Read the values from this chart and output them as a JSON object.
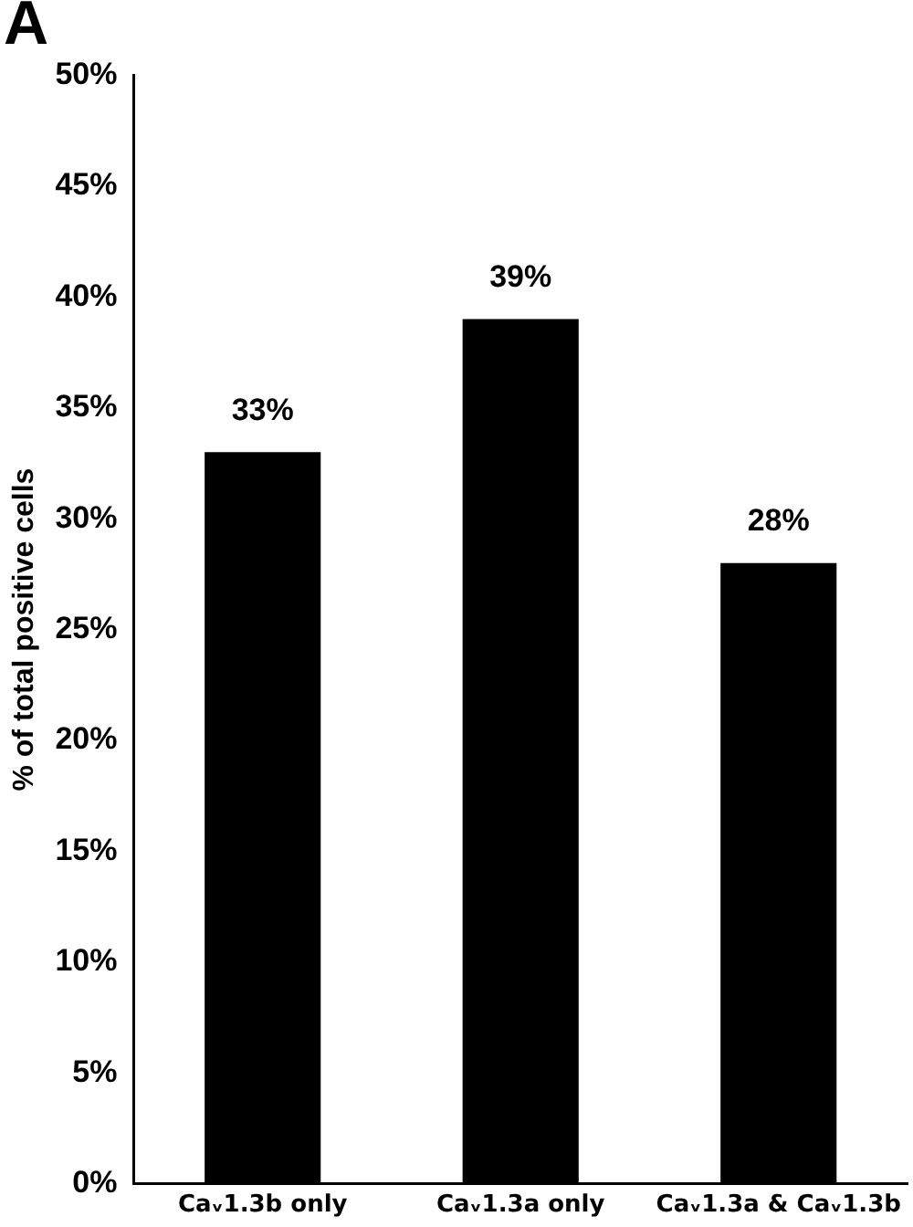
{
  "chart_data": {
    "type": "bar",
    "title": "A",
    "ylabel": "% of total positive cells",
    "categories": [
      "Caᵥ1.3b only",
      "Caᵥ1.3a only",
      "Caᵥ1.3a & Caᵥ1.3b"
    ],
    "values": [
      33,
      39,
      28
    ],
    "color": "#000000",
    "value_labels": [
      "33%",
      "39%",
      "28%"
    ],
    "ylim": [
      0,
      50
    ],
    "yticks": [
      {
        "value": 0,
        "label": "0%"
      },
      {
        "value": 5,
        "label": "5%"
      },
      {
        "value": 10,
        "label": "10%"
      },
      {
        "value": 15,
        "label": "15%"
      },
      {
        "value": 20,
        "label": "20%"
      },
      {
        "value": 25,
        "label": "25%"
      },
      {
        "value": 30,
        "label": "30%"
      },
      {
        "value": 35,
        "label": "35%"
      },
      {
        "value": 40,
        "label": "40%"
      },
      {
        "value": 45,
        "label": "45%"
      },
      {
        "value": 50,
        "label": "50%"
      }
    ],
    "grid": false,
    "legend": false
  }
}
